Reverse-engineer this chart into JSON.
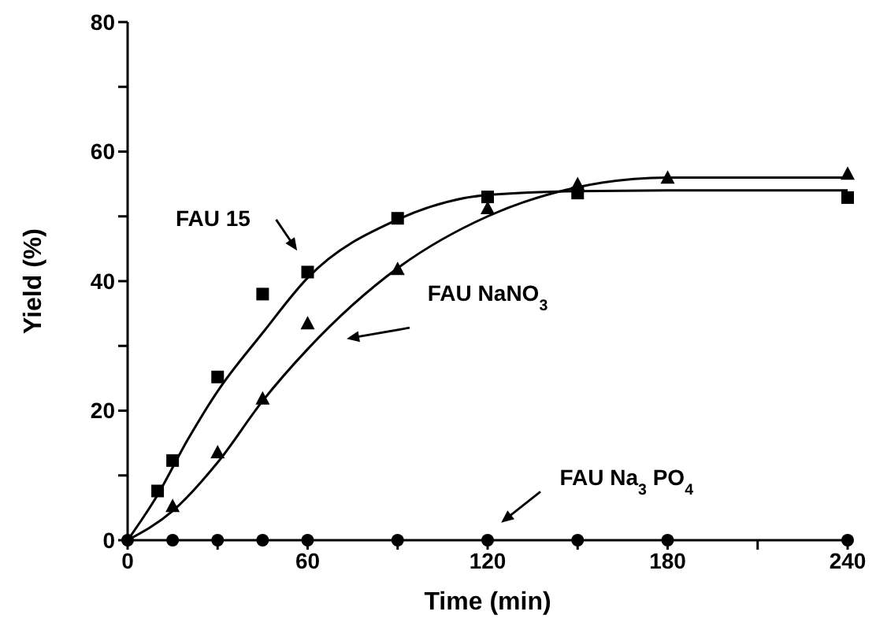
{
  "chart_data": {
    "type": "scatter",
    "xlabel": "Time (min)",
    "ylabel": "Yield (%)",
    "xlim": [
      0,
      240
    ],
    "xticks": [
      0,
      {
        "value": 30,
        "label": null
      },
      60,
      {
        "value": 90,
        "label": null
      },
      120,
      {
        "value": 150,
        "label": null
      },
      180,
      {
        "value": 210,
        "label": null
      },
      240
    ],
    "ylim": [
      0,
      80
    ],
    "yticks": [
      0,
      {
        "value": 10,
        "label": null
      },
      20,
      {
        "value": 30,
        "label": null
      },
      40,
      {
        "value": 50,
        "label": null
      },
      60,
      {
        "value": 70,
        "label": null
      },
      80
    ],
    "grid": false,
    "line_style": "solid",
    "series": [
      {
        "name": "FAU 15",
        "marker": "square",
        "color": "#000000",
        "x": [
          10,
          15,
          30,
          45,
          60,
          90,
          120,
          150,
          240
        ],
        "values": [
          7.6,
          12.3,
          25.2,
          38.0,
          41.4,
          49.7,
          53.0,
          53.6,
          52.9
        ]
      },
      {
        "name": "FAU NaNO$_{3}$",
        "marker": "triangle",
        "color": "#000000",
        "x": [
          15,
          30,
          45,
          60,
          90,
          120,
          150,
          180,
          240
        ],
        "values": [
          5.2,
          13.5,
          21.8,
          33.4,
          41.8,
          51.2,
          54.9,
          55.9,
          56.5
        ]
      },
      {
        "name": "FAU Na$_{3}$PO$_{4}$",
        "marker": "circle",
        "color": "#000000",
        "x": [
          0,
          15,
          30,
          45,
          60,
          90,
          120,
          150,
          180,
          240
        ],
        "values": [
          0,
          0,
          0,
          0,
          0,
          0,
          0,
          0,
          0,
          0
        ]
      },
      {
        "type": "line",
        "marker": "none",
        "color": "#000000",
        "x": [
          0,
          10,
          20,
          30,
          45,
          60,
          90,
          120,
          150,
          180,
          240
        ],
        "values": [
          0,
          7,
          15.5,
          23,
          32,
          40.5,
          49.5,
          53.3,
          53.9,
          54,
          54
        ]
      },
      {
        "type": "line",
        "marker": "none",
        "color": "#000000",
        "x": [
          0,
          15,
          30,
          45,
          60,
          90,
          120,
          150,
          180,
          240
        ],
        "values": [
          0,
          4.5,
          12,
          21.5,
          29.5,
          42,
          50,
          54.5,
          56,
          56
        ]
      }
    ]
  }
}
